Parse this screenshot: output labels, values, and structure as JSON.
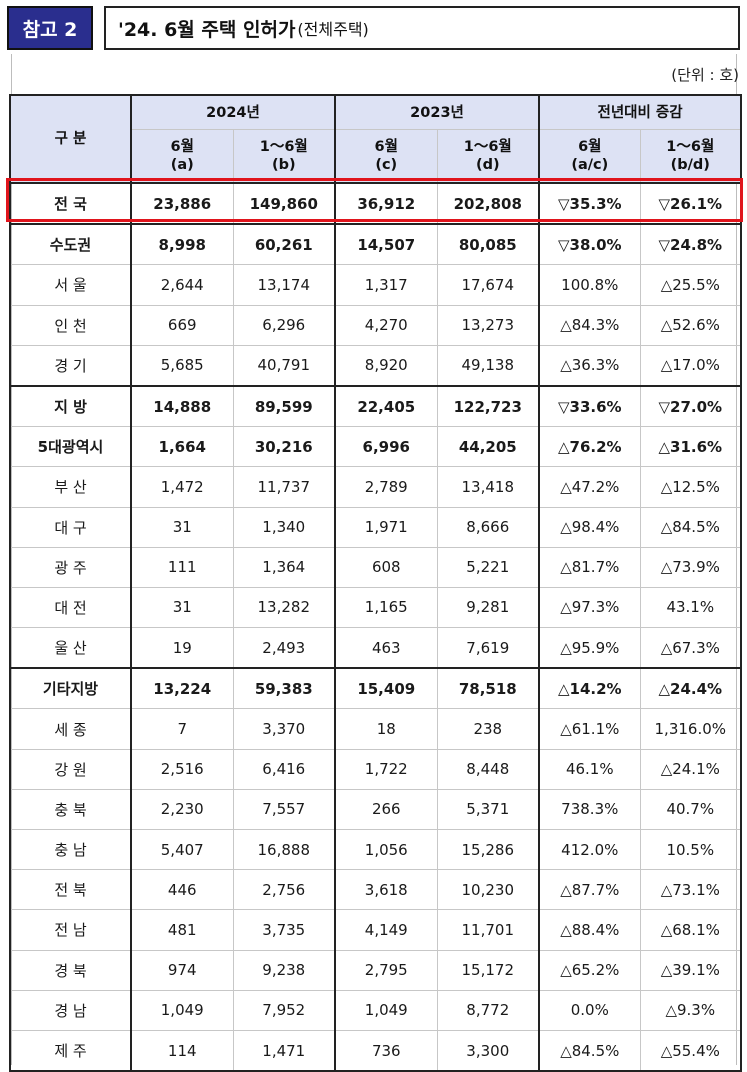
{
  "header": {
    "badge": "참고 2",
    "title": "'24. 6월 주택 인허가",
    "subtitle": "(전체주택)",
    "unit": "(단위 : 호)"
  },
  "table": {
    "corner": "구  분",
    "years": [
      "2024년",
      "2023년",
      "전년대비 증감"
    ],
    "subheads": [
      [
        "6월",
        "(a)"
      ],
      [
        "1～6월",
        "(b)"
      ],
      [
        "6월",
        "(c)"
      ],
      [
        "1～6월",
        "(d)"
      ],
      [
        "6월",
        "(a/c)"
      ],
      [
        "1～6월",
        "(b/d)"
      ]
    ],
    "rows": [
      {
        "name": "전  국",
        "bold": true,
        "values": [
          "23,886",
          "149,860",
          "36,912",
          "202,808",
          "▽35.3%",
          "▽26.1%"
        ]
      },
      {
        "name": "수도권",
        "bold": true,
        "values": [
          "8,998",
          "60,261",
          "14,507",
          "80,085",
          "▽38.0%",
          "▽24.8%"
        ]
      },
      {
        "name": "서 울",
        "bold": false,
        "values": [
          "2,644",
          "13,174",
          "1,317",
          "17,674",
          "100.8%",
          "△25.5%"
        ]
      },
      {
        "name": "인 천",
        "bold": false,
        "values": [
          "669",
          "6,296",
          "4,270",
          "13,273",
          "△84.3%",
          "△52.6%"
        ]
      },
      {
        "name": "경 기",
        "bold": false,
        "values": [
          "5,685",
          "40,791",
          "8,920",
          "49,138",
          "△36.3%",
          "△17.0%"
        ]
      },
      {
        "name": "지  방",
        "bold": true,
        "values": [
          "14,888",
          "89,599",
          "22,405",
          "122,723",
          "▽33.6%",
          "▽27.0%"
        ]
      },
      {
        "name": "5대광역시",
        "bold": true,
        "values": [
          "1,664",
          "30,216",
          "6,996",
          "44,205",
          "△76.2%",
          "△31.6%"
        ]
      },
      {
        "name": "부 산",
        "bold": false,
        "values": [
          "1,472",
          "11,737",
          "2,789",
          "13,418",
          "△47.2%",
          "△12.5%"
        ]
      },
      {
        "name": "대 구",
        "bold": false,
        "values": [
          "31",
          "1,340",
          "1,971",
          "8,666",
          "△98.4%",
          "△84.5%"
        ]
      },
      {
        "name": "광 주",
        "bold": false,
        "values": [
          "111",
          "1,364",
          "608",
          "5,221",
          "△81.7%",
          "△73.9%"
        ]
      },
      {
        "name": "대 전",
        "bold": false,
        "values": [
          "31",
          "13,282",
          "1,165",
          "9,281",
          "△97.3%",
          "43.1%"
        ]
      },
      {
        "name": "울 산",
        "bold": false,
        "values": [
          "19",
          "2,493",
          "463",
          "7,619",
          "△95.9%",
          "△67.3%"
        ]
      },
      {
        "name": "기타지방",
        "bold": true,
        "values": [
          "13,224",
          "59,383",
          "15,409",
          "78,518",
          "△14.2%",
          "△24.4%"
        ]
      },
      {
        "name": "세 종",
        "bold": false,
        "values": [
          "7",
          "3,370",
          "18",
          "238",
          "△61.1%",
          "1,316.0%"
        ]
      },
      {
        "name": "강 원",
        "bold": false,
        "values": [
          "2,516",
          "6,416",
          "1,722",
          "8,448",
          "46.1%",
          "△24.1%"
        ]
      },
      {
        "name": "충 북",
        "bold": false,
        "values": [
          "2,230",
          "7,557",
          "266",
          "5,371",
          "738.3%",
          "40.7%"
        ]
      },
      {
        "name": "충 남",
        "bold": false,
        "values": [
          "5,407",
          "16,888",
          "1,056",
          "15,286",
          "412.0%",
          "10.5%"
        ]
      },
      {
        "name": "전 북",
        "bold": false,
        "values": [
          "446",
          "2,756",
          "3,618",
          "10,230",
          "△87.7%",
          "△73.1%"
        ]
      },
      {
        "name": "전 남",
        "bold": false,
        "values": [
          "481",
          "3,735",
          "4,149",
          "11,701",
          "△88.4%",
          "△68.1%"
        ]
      },
      {
        "name": "경 북",
        "bold": false,
        "values": [
          "974",
          "9,238",
          "2,795",
          "15,172",
          "△65.2%",
          "△39.1%"
        ]
      },
      {
        "name": "경 남",
        "bold": false,
        "values": [
          "1,049",
          "7,952",
          "1,049",
          "8,772",
          "0.0%",
          "△9.3%"
        ]
      },
      {
        "name": "제 주",
        "bold": false,
        "values": [
          "114",
          "1,471",
          "736",
          "3,300",
          "△84.5%",
          "△55.4%"
        ]
      }
    ]
  },
  "colors": {
    "badge_bg": "#2a2e8e",
    "header_bg": "#dde2f4",
    "highlight": "#e0141c"
  }
}
